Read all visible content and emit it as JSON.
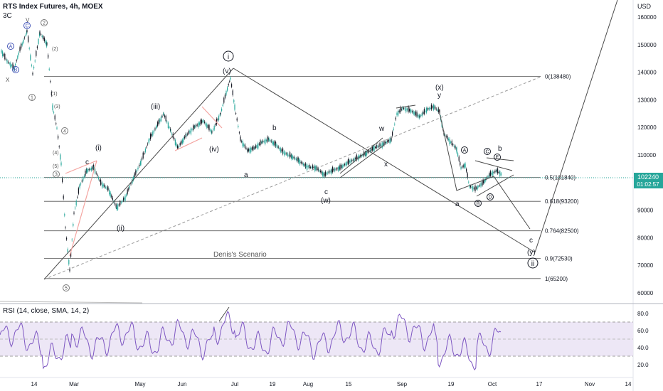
{
  "header": {
    "title": "RTS Index Futures, 4h, MOEX",
    "subtitle": "3C"
  },
  "price_axis": {
    "currency": "USD",
    "ticks": [
      60000,
      70000,
      80000,
      90000,
      100000,
      110000,
      120000,
      130000,
      140000,
      150000,
      160000
    ]
  },
  "rsi_axis": {
    "ticks": [
      20.0,
      40.0,
      60.0,
      80.0
    ]
  },
  "time_axis": {
    "labels": [
      "14",
      "Mar",
      "May",
      "Jun",
      "Jul",
      "19",
      "Aug",
      "15",
      "Sep",
      "19",
      "Oct",
      "17",
      "Nov",
      "14"
    ]
  },
  "last_price": {
    "value": "102240",
    "countdown": "01:02:57",
    "color": "#26a69a"
  },
  "fib_levels": [
    {
      "label": "0(138480)",
      "value": 138480
    },
    {
      "label": "0.5(101840)",
      "value": 101840
    },
    {
      "label": "0.618(93200)",
      "value": 93200
    },
    {
      "label": "0.764(82500)",
      "value": 82500
    },
    {
      "label": "0.9(72530)",
      "value": 72530
    },
    {
      "label": "1(65200)",
      "value": 65200
    }
  ],
  "wave_labels": {
    "i_circle": "i",
    "ii_circle": "ii",
    "w1": "(i)",
    "w2": "(ii)",
    "w3": "(iii)",
    "w4": "(iv)",
    "w5": "(v)",
    "a1": "a",
    "b1": "b",
    "c1": "c",
    "w_paren": "(w)",
    "w_small": "w",
    "x_small": "x",
    "x_paren": "(x)",
    "y_small": "y",
    "a2": "a",
    "b2": "b",
    "c2": "c",
    "y_paren": "(y)",
    "c_small_left": "c",
    "A": "A",
    "B": "B",
    "C": "C",
    "D": "D",
    "E": "E",
    "left_labels": [
      "1",
      "2",
      "3",
      "4",
      "5",
      "(1)",
      "(2)",
      "(3)",
      "(4)",
      "(5)",
      "X",
      "V",
      "A",
      "B",
      "C"
    ]
  },
  "annotation": "Denis's Scenario",
  "rsi_indicator": {
    "label": "RSI (14, close, SMA, 14, 2)",
    "band_upper": 70,
    "band_lower": 30,
    "middle": 50
  },
  "chart_data": {
    "type": "line",
    "title": "RTS Index Futures, 4h, MOEX",
    "ylabel": "USD",
    "ylim": [
      60000,
      165000
    ],
    "x": [
      "14",
      "Mar",
      "May",
      "Jun",
      "Jul",
      "19",
      "Aug",
      "15",
      "Sep",
      "19",
      "Oct"
    ],
    "series": [
      {
        "values": [
          150000,
          95000,
          102000,
          125000,
          138480,
          110000,
          102000,
          112000,
          128000,
          96000,
          102240
        ]
      },
      {
        "values": [
          55,
          30,
          50,
          60,
          65,
          45,
          40,
          55,
          75,
          20,
          55
        ]
      }
    ]
  },
  "colors": {
    "candle_up": "#26a69a",
    "candle_down": "#131722",
    "rsi_line": "#7e57c2",
    "rsi_band": "#ede7f6",
    "guide": "#787b86"
  }
}
